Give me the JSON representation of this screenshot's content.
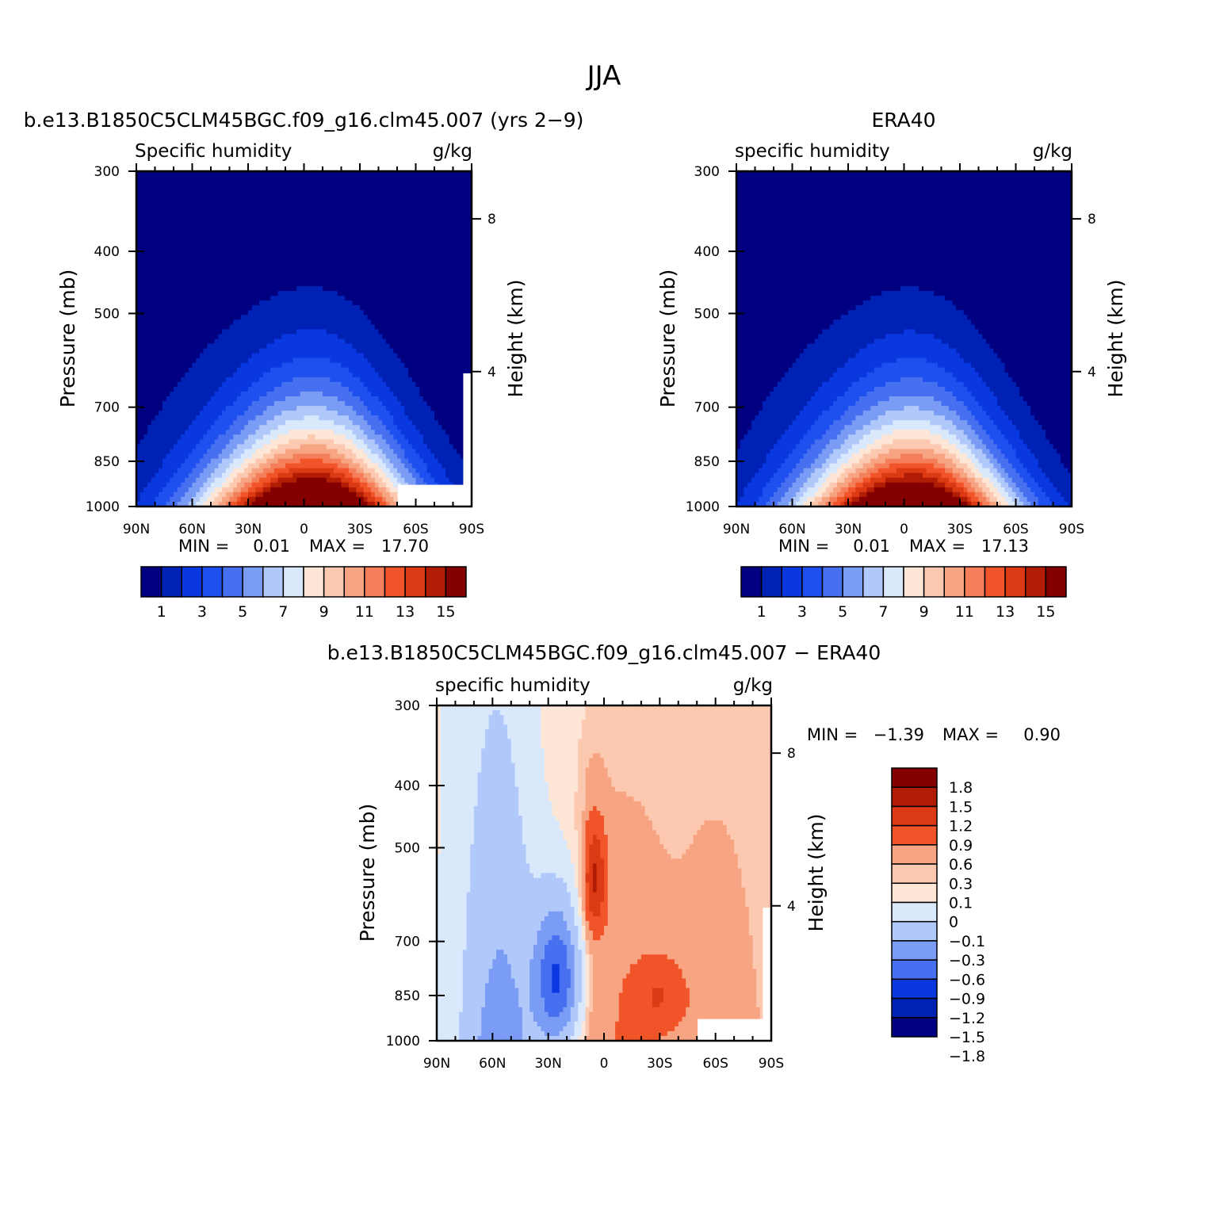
{
  "figure_title": "JJA",
  "palettes": {
    "sequential": [
      "#000080",
      "#0022b4",
      "#0a38e0",
      "#1e50f0",
      "#4670ef",
      "#7a9cf4",
      "#b0c8fa",
      "#dae8fc",
      "#fde6d6",
      "#fcc8b0",
      "#f7a482",
      "#f47f5a",
      "#f2542a",
      "#dc3a14",
      "#b01c04",
      "#840000"
    ],
    "diverging": [
      "#840000",
      "#b01c04",
      "#dc3a14",
      "#f2542a",
      "#f7a482",
      "#fcc8b0",
      "#fde6d6",
      "#dae8fc",
      "#b0c8fa",
      "#7a9cf4",
      "#4670ef",
      "#0a38e0",
      "#0022b4",
      "#000080"
    ]
  },
  "chart_data": [
    {
      "type": "heatmap",
      "id": "model",
      "title": "b.e13.B1850C5CLM45BGC.f09_g16.clm45.007 (yrs 2−9)",
      "left_string": "Specific humidity",
      "right_string": "g/kg",
      "xlabel": "",
      "ylabel": "Pressure (mb)",
      "y2label": "Height (km)",
      "x_ticks": [
        "90N",
        "60N",
        "30N",
        "0",
        "30S",
        "60S",
        "90S"
      ],
      "x_range": [
        90,
        -90
      ],
      "y_ticks": [
        300,
        400,
        500,
        700,
        850,
        1000
      ],
      "y_range": [
        300,
        1000
      ],
      "y2_ticks": [
        "8",
        "4"
      ],
      "stats": {
        "min_label": "MIN =",
        "min": "0.01",
        "max_label": "MAX =",
        "max": "17.70"
      },
      "colorbar": {
        "orientation": "horizontal",
        "labels": [
          "1",
          "3",
          "5",
          "7",
          "9",
          "11",
          "13",
          "15"
        ]
      },
      "peak": {
        "lat": -8,
        "value": 17.7
      },
      "bottom_right_missing": true
    },
    {
      "type": "heatmap",
      "id": "obs",
      "title": "ERA40",
      "left_string": "specific humidity",
      "right_string": "g/kg",
      "xlabel": "",
      "ylabel": "Pressure (mb)",
      "y2label": "Height (km)",
      "x_ticks": [
        "90N",
        "60N",
        "30N",
        "0",
        "30S",
        "60S",
        "90S"
      ],
      "x_range": [
        90,
        -90
      ],
      "y_ticks": [
        300,
        400,
        500,
        700,
        850,
        1000
      ],
      "y_range": [
        300,
        1000
      ],
      "y2_ticks": [
        "8",
        "4"
      ],
      "stats": {
        "min_label": "MIN =",
        "min": "0.01",
        "max_label": "MAX =",
        "max": "17.13"
      },
      "colorbar": {
        "orientation": "horizontal",
        "labels": [
          "1",
          "3",
          "5",
          "7",
          "9",
          "11",
          "13",
          "15"
        ]
      },
      "peak": {
        "lat": -8,
        "value": 17.13
      },
      "bottom_right_missing": false
    },
    {
      "type": "heatmap",
      "id": "diff",
      "title": "b.e13.B1850C5CLM45BGC.f09_g16.clm45.007 − ERA40",
      "left_string": "specific humidity",
      "right_string": "g/kg",
      "xlabel": "",
      "ylabel": "Pressure (mb)",
      "y2label": "Height (km)",
      "x_ticks": [
        "90N",
        "60N",
        "30N",
        "0",
        "30S",
        "60S",
        "90S"
      ],
      "x_range": [
        90,
        -90
      ],
      "y_ticks": [
        300,
        400,
        500,
        700,
        850,
        1000
      ],
      "y_range": [
        300,
        1000
      ],
      "y2_ticks": [
        "8",
        "4"
      ],
      "stats": {
        "min_label": "MIN =",
        "min": "−1.39",
        "max_label": "MAX =",
        "max": "0.90"
      },
      "colorbar": {
        "orientation": "vertical",
        "labels": [
          "1.8",
          "1.5",
          "1.2",
          "0.9",
          "0.6",
          "0.3",
          "0.1",
          "0",
          "−0.1",
          "−0.3",
          "−0.6",
          "−0.9",
          "−1.2",
          "−1.5",
          "−1.8"
        ]
      },
      "bottom_right_missing": true
    }
  ]
}
